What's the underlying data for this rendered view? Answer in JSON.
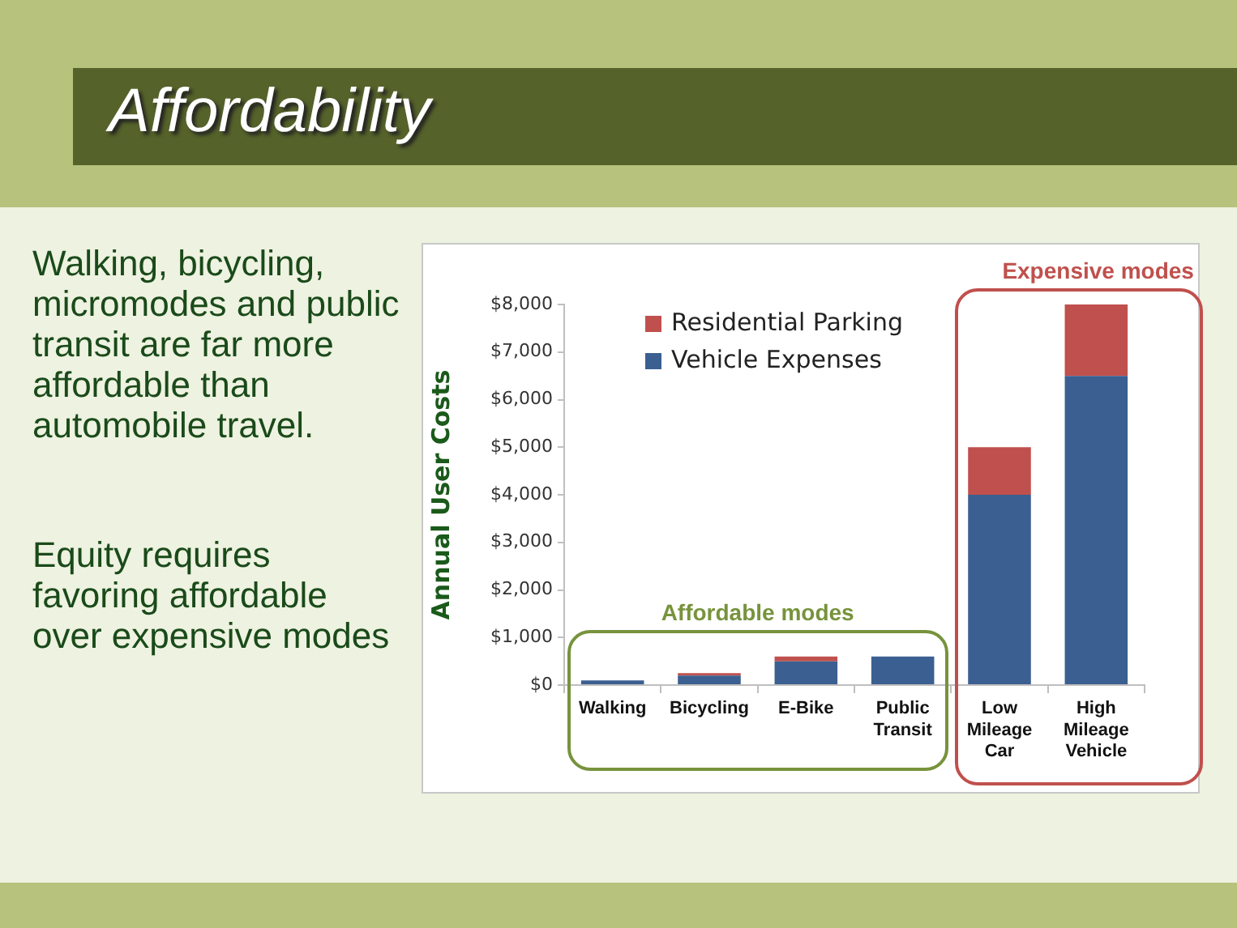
{
  "chart_data": {
    "type": "bar",
    "title": "Affordability",
    "categories": [
      "Walking",
      "Bicycling",
      "E-Bike",
      "Public Transit",
      "Low Mileage Car",
      "High Mileage Vehicle"
    ],
    "series": [
      {
        "name": "Vehicle Expenses",
        "color": "#3b5f91",
        "values": [
          100,
          200,
          500,
          600,
          4000,
          6500
        ]
      },
      {
        "name": "Residential Parking",
        "color": "#c0504d",
        "values": [
          0,
          50,
          100,
          0,
          1000,
          1500
        ]
      }
    ],
    "stacked": true,
    "ylabel": "Annual User Costs",
    "ylim": [
      0,
      8000
    ],
    "yticks": [
      {
        "value": 0,
        "label": "$0"
      },
      {
        "value": 1000,
        "label": "$1,000"
      },
      {
        "value": 2000,
        "label": "$2,000"
      },
      {
        "value": 3000,
        "label": "$3,000"
      },
      {
        "value": 4000,
        "label": "$4,000"
      },
      {
        "value": 5000,
        "label": "$5,000"
      },
      {
        "value": 6000,
        "label": "$6,000"
      },
      {
        "value": 7000,
        "label": "$7,000"
      },
      {
        "value": 8000,
        "label": "$8,000"
      }
    ],
    "grid": false,
    "legend": "top left",
    "annotations": [
      "Walking, bicycling, micromodes and public transit are far more affordable than automobile travel.",
      "Equity requires favoring affordable over expensive modes",
      "Affordable modes",
      "Expensive modes"
    ]
  }
}
